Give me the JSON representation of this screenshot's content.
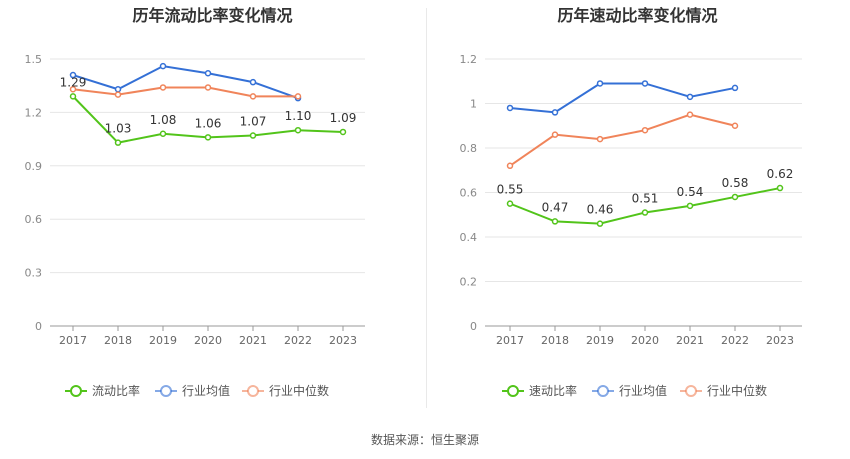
{
  "charts": [
    {
      "title": "历年流动比率变化情况",
      "chart_data": {
        "type": "line",
        "categories": [
          "2017",
          "2018",
          "2019",
          "2020",
          "2021",
          "2022",
          "2023"
        ],
        "ylim": [
          0,
          1.5
        ],
        "yticks": [
          "0",
          "0.3",
          "0.6",
          "0.9",
          "1.2",
          "1.5"
        ],
        "ytick_values": [
          0,
          0.3,
          0.6,
          0.9,
          1.2,
          1.5
        ],
        "series": [
          {
            "name": "流动比率",
            "color": "#52c41a",
            "values": [
              1.29,
              1.03,
              1.08,
              1.06,
              1.07,
              1.1,
              1.09
            ],
            "labels": [
              "1.29",
              "1.03",
              "1.08",
              "1.06",
              "1.07",
              "1.10",
              "1.09"
            ]
          },
          {
            "name": "行业均值",
            "color": "#3470d6",
            "values": [
              1.41,
              1.33,
              1.46,
              1.42,
              1.37,
              1.28,
              null
            ]
          },
          {
            "name": "行业中位数",
            "color": "#f0845a",
            "values": [
              1.33,
              1.3,
              1.34,
              1.34,
              1.29,
              1.29,
              null
            ]
          }
        ]
      }
    },
    {
      "title": "历年速动比率变化情况",
      "chart_data": {
        "type": "line",
        "categories": [
          "2017",
          "2018",
          "2019",
          "2020",
          "2021",
          "2022",
          "2023"
        ],
        "ylim": [
          0,
          1.2
        ],
        "yticks": [
          "0",
          "0.2",
          "0.4",
          "0.6",
          "0.8",
          "1",
          "1.2"
        ],
        "ytick_values": [
          0,
          0.2,
          0.4,
          0.6,
          0.8,
          1.0,
          1.2
        ],
        "series": [
          {
            "name": "速动比率",
            "color": "#52c41a",
            "values": [
              0.55,
              0.47,
              0.46,
              0.51,
              0.54,
              0.58,
              0.62
            ],
            "labels": [
              "0.55",
              "0.47",
              "0.46",
              "0.51",
              "0.54",
              "0.58",
              "0.62"
            ]
          },
          {
            "name": "行业均值",
            "color": "#3470d6",
            "values": [
              0.98,
              0.96,
              1.09,
              1.09,
              1.03,
              1.07,
              null
            ]
          },
          {
            "name": "行业中位数",
            "color": "#f0845a",
            "values": [
              0.72,
              0.86,
              0.84,
              0.88,
              0.95,
              0.9,
              null
            ]
          }
        ]
      }
    }
  ],
  "source": "数据来源：恒生聚源"
}
